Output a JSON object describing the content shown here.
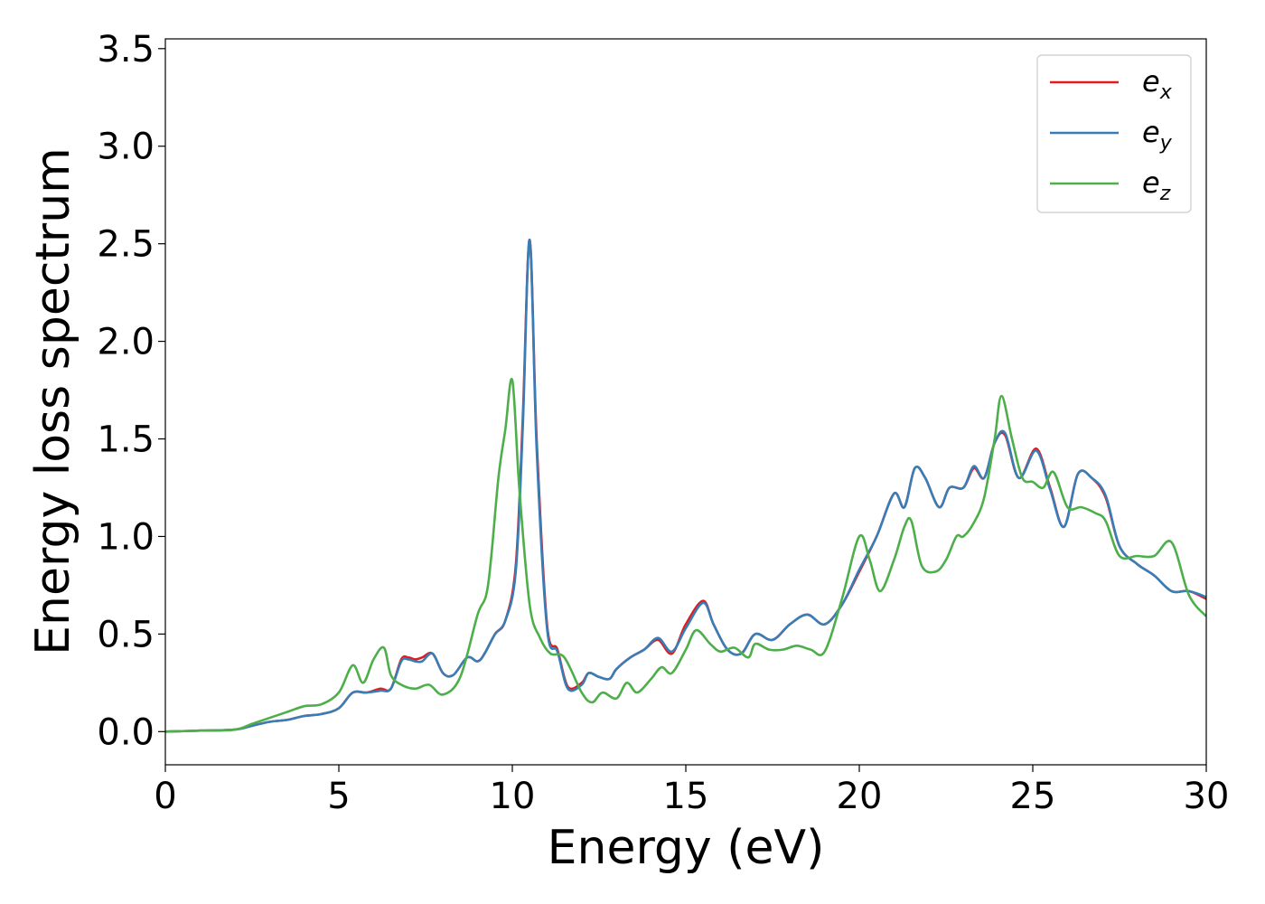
{
  "chart_data": {
    "type": "line",
    "title": "",
    "xlabel": "Energy (eV)",
    "ylabel": "Energy loss spectrum",
    "xlim": [
      0,
      30
    ],
    "ylim": [
      -0.17,
      3.55
    ],
    "xticks": [
      "0",
      "5",
      "10",
      "15",
      "20",
      "25",
      "30"
    ],
    "yticks": [
      "0.0",
      "0.5",
      "1.0",
      "1.5",
      "2.0",
      "2.5",
      "3.0",
      "3.5"
    ],
    "grid": false,
    "legend_position": "top-right",
    "series": [
      {
        "name": "e",
        "subscript": "x",
        "color": "#e41a1c",
        "x": [
          0,
          1,
          2,
          2.5,
          3,
          3.5,
          4,
          4.5,
          5,
          5.4,
          5.8,
          6.2,
          6.5,
          6.8,
          7.0,
          7.2,
          7.4,
          7.7,
          8.0,
          8.3,
          8.7,
          9.0,
          9.2,
          9.5,
          9.8,
          10.1,
          10.3,
          10.5,
          10.7,
          11.0,
          11.3,
          11.6,
          12.0,
          12.2,
          12.5,
          12.8,
          13.0,
          13.4,
          13.8,
          14.2,
          14.6,
          15.0,
          15.5,
          15.8,
          16.2,
          16.6,
          17.0,
          17.5,
          18.0,
          18.5,
          19.0,
          19.5,
          20.0,
          20.5,
          21.0,
          21.3,
          21.6,
          21.9,
          22.3,
          22.6,
          23.0,
          23.3,
          23.6,
          23.9,
          24.2,
          24.6,
          25.1,
          25.5,
          25.9,
          26.3,
          26.7,
          27.1,
          27.5,
          28.0,
          28.5,
          29.0,
          29.5,
          30.0
        ],
        "y": [
          0,
          0.005,
          0.01,
          0.03,
          0.05,
          0.06,
          0.08,
          0.09,
          0.12,
          0.2,
          0.2,
          0.22,
          0.22,
          0.37,
          0.38,
          0.37,
          0.38,
          0.4,
          0.3,
          0.29,
          0.38,
          0.36,
          0.4,
          0.5,
          0.57,
          0.85,
          1.6,
          2.52,
          1.5,
          0.55,
          0.42,
          0.23,
          0.25,
          0.3,
          0.28,
          0.27,
          0.32,
          0.38,
          0.42,
          0.47,
          0.4,
          0.55,
          0.67,
          0.55,
          0.42,
          0.4,
          0.5,
          0.47,
          0.55,
          0.6,
          0.55,
          0.65,
          0.82,
          1.0,
          1.22,
          1.15,
          1.35,
          1.3,
          1.15,
          1.25,
          1.25,
          1.35,
          1.3,
          1.48,
          1.52,
          1.3,
          1.45,
          1.25,
          1.05,
          1.32,
          1.3,
          1.2,
          0.95,
          0.86,
          0.8,
          0.72,
          0.72,
          0.68
        ]
      },
      {
        "name": "e",
        "subscript": "y",
        "color": "#377eb8",
        "x": [
          0,
          1,
          2,
          2.5,
          3,
          3.5,
          4,
          4.5,
          5,
          5.4,
          5.8,
          6.2,
          6.5,
          6.8,
          7.0,
          7.2,
          7.4,
          7.7,
          8.0,
          8.3,
          8.7,
          9.0,
          9.2,
          9.5,
          9.8,
          10.1,
          10.3,
          10.5,
          10.7,
          11.0,
          11.3,
          11.6,
          12.0,
          12.2,
          12.5,
          12.8,
          13.0,
          13.4,
          13.8,
          14.2,
          14.6,
          15.0,
          15.5,
          15.8,
          16.2,
          16.6,
          17.0,
          17.5,
          18.0,
          18.5,
          19.0,
          19.5,
          20.0,
          20.5,
          21.0,
          21.3,
          21.6,
          21.9,
          22.3,
          22.6,
          23.0,
          23.3,
          23.6,
          23.9,
          24.2,
          24.6,
          25.1,
          25.5,
          25.9,
          26.3,
          26.7,
          27.1,
          27.5,
          28.0,
          28.5,
          29.0,
          29.5,
          30.0
        ],
        "y": [
          0,
          0.005,
          0.01,
          0.03,
          0.05,
          0.06,
          0.08,
          0.09,
          0.12,
          0.2,
          0.2,
          0.21,
          0.22,
          0.36,
          0.37,
          0.36,
          0.36,
          0.4,
          0.3,
          0.29,
          0.38,
          0.36,
          0.4,
          0.5,
          0.57,
          0.82,
          1.55,
          2.52,
          1.45,
          0.53,
          0.41,
          0.22,
          0.24,
          0.3,
          0.28,
          0.27,
          0.32,
          0.38,
          0.42,
          0.48,
          0.41,
          0.53,
          0.66,
          0.55,
          0.42,
          0.4,
          0.5,
          0.47,
          0.55,
          0.6,
          0.55,
          0.65,
          0.83,
          1.0,
          1.22,
          1.15,
          1.35,
          1.3,
          1.15,
          1.25,
          1.25,
          1.36,
          1.3,
          1.48,
          1.53,
          1.3,
          1.44,
          1.24,
          1.05,
          1.32,
          1.3,
          1.21,
          0.95,
          0.86,
          0.8,
          0.72,
          0.72,
          0.69
        ]
      },
      {
        "name": "e",
        "subscript": "z",
        "color": "#4daf4a",
        "x": [
          0,
          1,
          2,
          2.5,
          3,
          3.5,
          4,
          4.5,
          5,
          5.4,
          5.7,
          6.0,
          6.3,
          6.5,
          6.8,
          7.2,
          7.6,
          8.0,
          8.5,
          9.0,
          9.3,
          9.6,
          9.8,
          10.0,
          10.2,
          10.5,
          10.8,
          11.1,
          11.5,
          12.0,
          12.3,
          12.6,
          13.0,
          13.3,
          13.6,
          14.0,
          14.3,
          14.6,
          15.0,
          15.3,
          15.7,
          16.0,
          16.4,
          16.8,
          17.0,
          17.4,
          17.8,
          18.2,
          18.6,
          19.0,
          19.5,
          20.0,
          20.3,
          20.6,
          21.0,
          21.3,
          21.5,
          21.8,
          22.2,
          22.5,
          22.8,
          23.0,
          23.3,
          23.6,
          23.9,
          24.1,
          24.4,
          24.7,
          25.0,
          25.3,
          25.6,
          26.0,
          26.4,
          26.8,
          27.1,
          27.5,
          28.0,
          28.5,
          29.0,
          29.5,
          30.0
        ],
        "y": [
          0,
          0.005,
          0.01,
          0.04,
          0.07,
          0.1,
          0.13,
          0.14,
          0.2,
          0.34,
          0.25,
          0.37,
          0.43,
          0.29,
          0.24,
          0.22,
          0.24,
          0.19,
          0.28,
          0.6,
          0.75,
          1.3,
          1.55,
          1.8,
          1.25,
          0.65,
          0.48,
          0.4,
          0.38,
          0.2,
          0.15,
          0.2,
          0.17,
          0.25,
          0.2,
          0.27,
          0.33,
          0.3,
          0.42,
          0.52,
          0.45,
          0.41,
          0.43,
          0.38,
          0.45,
          0.42,
          0.42,
          0.44,
          0.42,
          0.41,
          0.68,
          1.0,
          0.88,
          0.72,
          0.88,
          1.05,
          1.08,
          0.85,
          0.82,
          0.88,
          1.0,
          1.0,
          1.07,
          1.2,
          1.5,
          1.72,
          1.5,
          1.3,
          1.28,
          1.25,
          1.33,
          1.15,
          1.15,
          1.12,
          1.08,
          0.9,
          0.9,
          0.9,
          0.97,
          0.7,
          0.59
        ]
      }
    ]
  }
}
